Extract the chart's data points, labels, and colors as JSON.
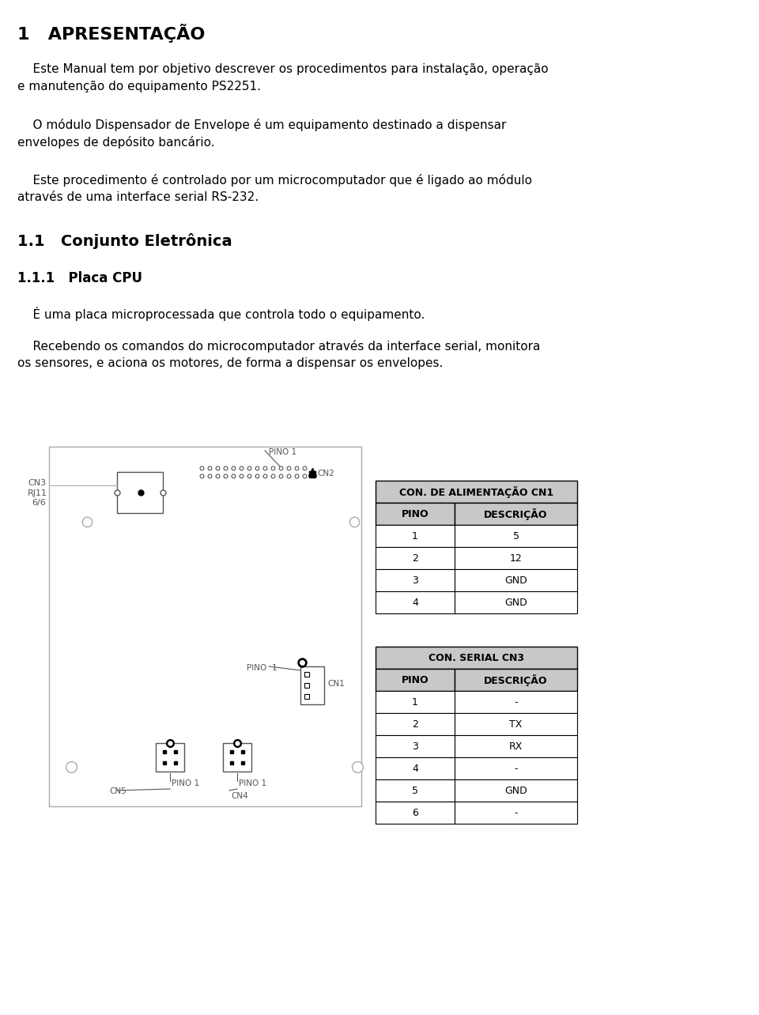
{
  "bg_color": "#ffffff",
  "page_bg": "#ffffff",
  "title": "1   APRESENTAÇÃO",
  "para1_line1": "    Este Manual tem por objetivo descrever os procedimentos para instalação, operação",
  "para1_line2": "e manutenção do equipamento PS2251.",
  "para2_line1": "    O módulo Dispensador de Envelope é um equipamento destinado a dispensar",
  "para2_line2": "envelopes de depósito bancário.",
  "para3_line1": "    Este procedimento é controlado por um microcomputador que é ligado ao módulo",
  "para3_line2": "através de uma interface serial RS-232.",
  "section11": "1.1   Conjunto Eletrônica",
  "section111": "1.1.1   Placa CPU",
  "para4": "    É uma placa microprocessada que controla todo o equipamento.",
  "para5_line1": "    Recebendo os comandos do microcomputador através da interface serial, monitora",
  "para5_line2": "os sensores, e aciona os motores, de forma a dispensar os envelopes.",
  "table1_title": "CON. DE ALIMENTAÇÃO CN1",
  "table1_headers": [
    "PINO",
    "DESCRIÇÃO"
  ],
  "table1_rows": [
    [
      "1",
      "5"
    ],
    [
      "2",
      "12"
    ],
    [
      "3",
      "GND"
    ],
    [
      "4",
      "GND"
    ]
  ],
  "table2_title": "CON. SERIAL CN3",
  "table2_headers": [
    "PINO",
    "DESCRIÇÃO"
  ],
  "table2_rows": [
    [
      "1",
      "-"
    ],
    [
      "2",
      "TX"
    ],
    [
      "3",
      "RX"
    ],
    [
      "4",
      "-"
    ],
    [
      "5",
      "GND"
    ],
    [
      "6",
      "-"
    ]
  ],
  "table_header_color": "#c8c8c8",
  "table_title_color": "#c8c8c8",
  "text_color": "#000000",
  "diagram_lc": "#aaaaaa",
  "diagram_dark": "#555555"
}
